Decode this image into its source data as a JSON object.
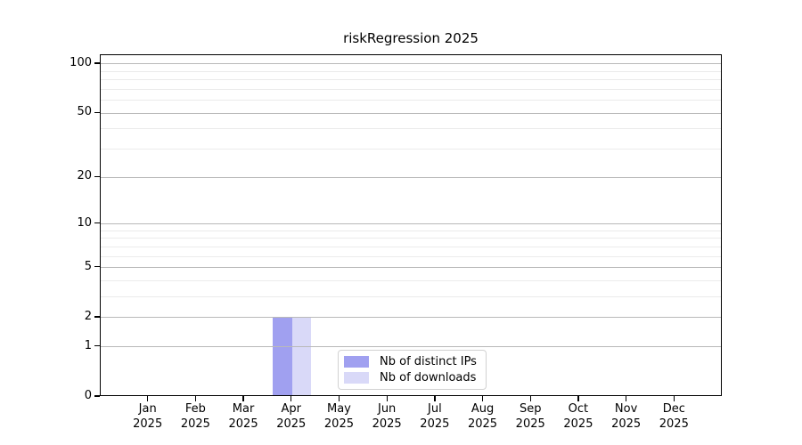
{
  "chart_data": {
    "type": "bar",
    "title": "riskRegression 2025",
    "categories": [
      "Jan 2025",
      "Feb 2025",
      "Mar 2025",
      "Apr 2025",
      "May 2025",
      "Jun 2025",
      "Jul 2025",
      "Aug 2025",
      "Sep 2025",
      "Oct 2025",
      "Nov 2025",
      "Dec 2025"
    ],
    "x_months": [
      "Jan",
      "Feb",
      "Mar",
      "Apr",
      "May",
      "Jun",
      "Jul",
      "Aug",
      "Sep",
      "Oct",
      "Nov",
      "Dec"
    ],
    "x_year": "2025",
    "series": [
      {
        "name": "Nb of distinct IPs",
        "color": "#a0a0f0",
        "values": [
          0,
          0,
          0,
          2,
          0,
          0,
          0,
          0,
          0,
          0,
          0,
          0
        ]
      },
      {
        "name": "Nb of downloads",
        "color": "#d9d9f8",
        "values": [
          0,
          0,
          0,
          2,
          0,
          0,
          0,
          0,
          0,
          0,
          0,
          0
        ]
      }
    ],
    "y_axis": {
      "scale": "log1p",
      "major_ticks": [
        0,
        1,
        2,
        5,
        10,
        20,
        50,
        100
      ],
      "minor_ticks": [
        3,
        4,
        6,
        7,
        8,
        9,
        30,
        40,
        60,
        70,
        80,
        90
      ],
      "ylim": [
        0,
        113
      ]
    },
    "grid": {
      "major_color": "#b9b9b9",
      "minor_color": "#ebebeb"
    },
    "axis_color": "#000000",
    "legend_position": "lower-right-inside"
  }
}
